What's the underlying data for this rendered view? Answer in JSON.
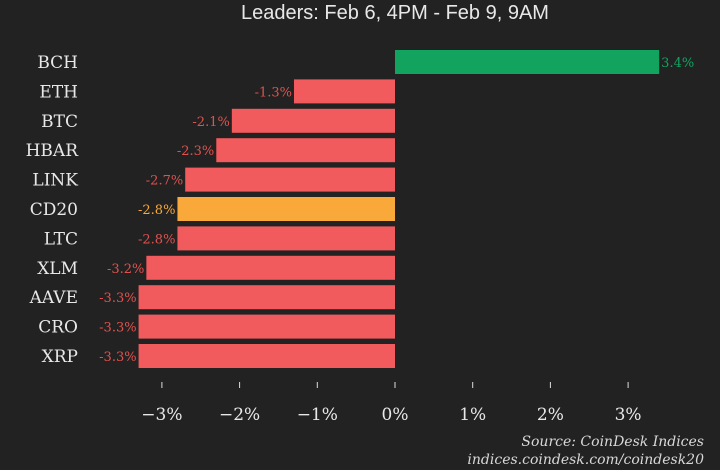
{
  "chart_data": {
    "type": "bar",
    "orientation": "horizontal",
    "title": "Leaders: Feb 6, 4PM - Feb 9, 9AM",
    "categories": [
      "BCH",
      "ETH",
      "BTC",
      "HBAR",
      "LINK",
      "CD20",
      "LTC",
      "XLM",
      "AAVE",
      "CRO",
      "XRP"
    ],
    "values": [
      3.4,
      -1.3,
      -2.1,
      -2.3,
      -2.7,
      -2.8,
      -2.8,
      -3.2,
      -3.3,
      -3.3,
      -3.3
    ],
    "data_labels": [
      "3.4%",
      "-1.3%",
      "-2.1%",
      "-2.3%",
      "-2.7%",
      "-2.8%",
      "-2.8%",
      "-3.2%",
      "-3.3%",
      "-3.3%",
      "-3.3%"
    ],
    "xlim": [
      -3.4,
      3.5
    ],
    "x_ticks": [
      -3,
      -2,
      -1,
      0,
      1,
      2,
      3
    ],
    "x_tick_labels": [
      "−3%",
      "−2%",
      "−1%",
      "0%",
      "1%",
      "2%",
      "3%"
    ],
    "xlabel": "",
    "ylabel": "",
    "grid": false,
    "colors": {
      "positive": "#12a35f",
      "negative": "#f15b5d",
      "index": "#f9a93a",
      "background": "#222222",
      "negative_label": "#e0524f"
    }
  },
  "footer": {
    "source": "Source: CoinDesk Indices",
    "url": "indices.coindesk.com/coindesk20"
  }
}
